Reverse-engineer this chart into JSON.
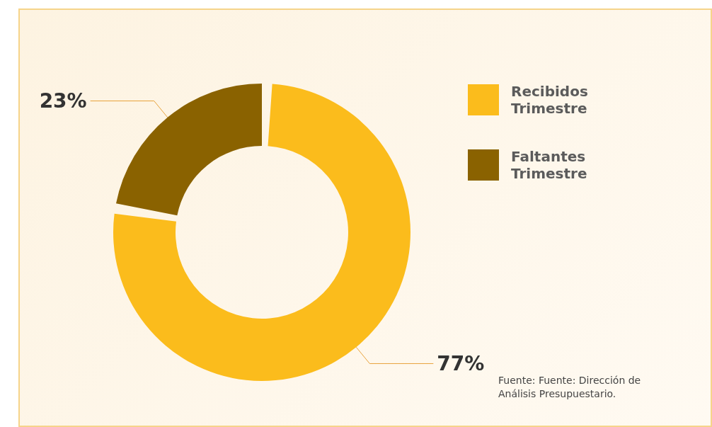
{
  "chart_data": {
    "type": "donut",
    "categories": [
      "Recibidos Trimestre",
      "Faltantes Trimestre"
    ],
    "values": [
      77,
      23
    ],
    "colors": [
      "#fbbc1c",
      "#8a6200"
    ],
    "value_labels": [
      "77%",
      "23%"
    ],
    "legend": "top right",
    "annotations": [
      "Fuente: Fuente: Dirección de Análisis Presupuestario."
    ]
  }
}
